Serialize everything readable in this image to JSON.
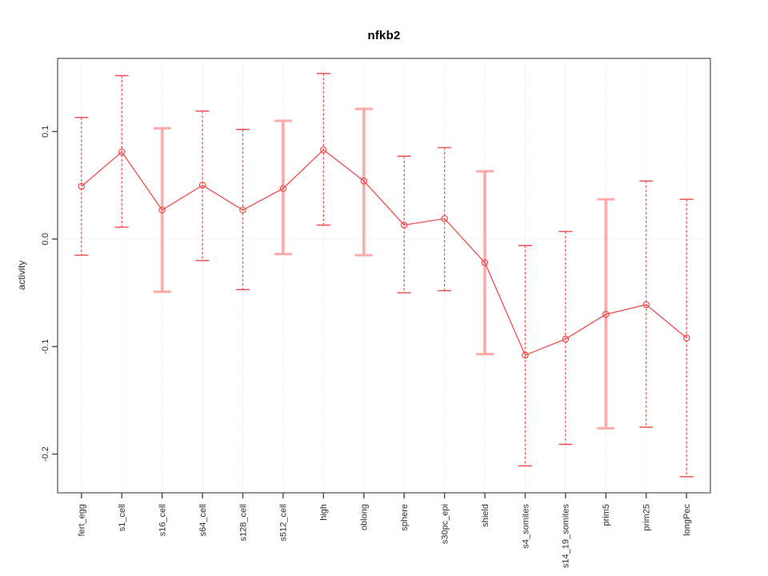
{
  "chart_data": {
    "type": "line",
    "title": "nfkb2",
    "ylabel": "activity",
    "xlabel": "",
    "categories": [
      "fert_egg",
      "s1_cell",
      "s16_cell",
      "s64_cell",
      "s128_cell",
      "s512_cell",
      "high",
      "oblong",
      "sphere",
      "s30pc_epi",
      "shield",
      "s4_somites",
      "s14_19_somites",
      "prim5",
      "prim25",
      "longPec"
    ],
    "series": [
      {
        "name": "nfkb2 activity",
        "values": [
          0.049,
          0.081,
          0.027,
          0.05,
          0.027,
          0.047,
          0.083,
          0.054,
          0.013,
          0.019,
          -0.022,
          -0.108,
          -0.093,
          -0.07,
          -0.061,
          -0.092
        ],
        "upper": [
          0.113,
          0.152,
          0.103,
          0.119,
          0.102,
          0.11,
          0.154,
          0.121,
          0.077,
          0.085,
          0.063,
          -0.006,
          0.007,
          0.037,
          0.054,
          0.037
        ],
        "lower": [
          -0.015,
          0.011,
          -0.049,
          -0.02,
          -0.047,
          -0.014,
          0.013,
          -0.015,
          -0.05,
          -0.048,
          -0.107,
          -0.211,
          -0.191,
          -0.176,
          -0.175,
          -0.221
        ],
        "error_bar_styles": [
          "thin",
          "thin",
          "thick",
          "thin",
          "thin",
          "thick",
          "thin",
          "thick",
          "thin",
          "thin",
          "thick",
          "thin",
          "thin",
          "thick",
          "thin",
          "thin"
        ]
      }
    ],
    "ylim": [
      -0.236,
      0.168
    ],
    "yticks": [
      {
        "value": 0.1,
        "label": "0.1"
      },
      {
        "value": 0.0,
        "label": "0.0"
      },
      {
        "value": -0.1,
        "label": "-0.1"
      },
      {
        "value": -0.2,
        "label": "-0.2"
      }
    ],
    "grid": {
      "horizontal_zero_line": true,
      "vertical_category_lines": true,
      "line_style": "dotted"
    },
    "legend_position": "none",
    "colors": {
      "point": "#f14c4c",
      "series_line": "#f14c4c",
      "error_bar_thin": "#f25252",
      "error_bar_thick": "#ffa9a9",
      "grid": "#dcdcdc",
      "box": "#7a7a7a",
      "tick": "#4a4a4a",
      "tick_text": "#2e2e2e",
      "background": "#ffffff"
    }
  }
}
